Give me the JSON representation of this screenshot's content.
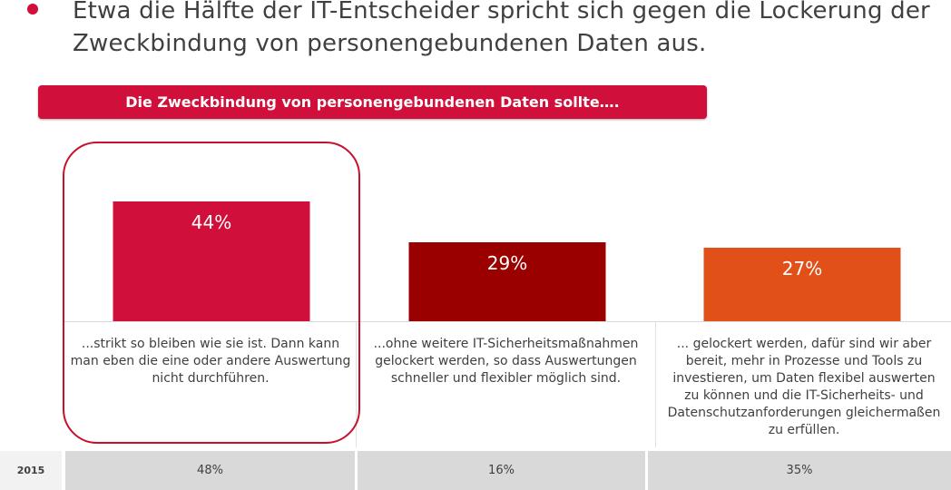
{
  "headline": {
    "line1": "Etwa die Hälfte der IT-Entscheider spricht sich gegen die Lockerung der",
    "line2": "Zweckbindung von personengebundenen Daten aus."
  },
  "banner": "Die Zweckbindung von personengebundenen Daten sollte….",
  "chart_data": {
    "type": "bar",
    "categories": [
      "...strikt so bleiben wie sie ist. Dann kann man eben die eine oder andere Auswertung nicht durchführen.",
      "...ohne weitere IT-Sicherheitsmaßnahmen gelockert werden, so dass Auswertungen schneller und flexibler möglich sind.",
      "... gelockert werden, dafür sind wir aber bereit, mehr in Prozesse und Tools zu investieren, um Daten flexibel auswerten zu können und die IT-Sicherheits- und Datenschutzanforderungen gleichermaßen zu erfüllen."
    ],
    "values": [
      44,
      29,
      27
    ],
    "data_labels": [
      "44%",
      "29%",
      "27%"
    ],
    "colors": [
      "#d0103a",
      "#9b0000",
      "#e2501a"
    ],
    "ylim": [
      0,
      50
    ],
    "comparison": {
      "label": "2015",
      "values": [
        "48%",
        "16%",
        "35%"
      ]
    }
  },
  "descriptions": [
    {
      "lines": [
        "...strikt so bleiben wie sie ist. Dann kann",
        "man eben die eine oder andere Auswertung",
        "nicht durchführen."
      ]
    },
    {
      "lines": [
        "...ohne weitere IT-Sicherheitsmaßnahmen",
        "gelockert werden, so dass Auswertungen",
        "schneller und flexibler möglich sind."
      ]
    },
    {
      "lines": [
        "... gelockert werden, dafür sind wir aber",
        "bereit, mehr in Prozesse und Tools zu",
        "investieren, um Daten flexibel auswerten",
        "zu können und die IT-Sicherheits- und",
        "Datenschutzanforderungen gleichermaßen",
        "zu erfüllen."
      ]
    }
  ]
}
